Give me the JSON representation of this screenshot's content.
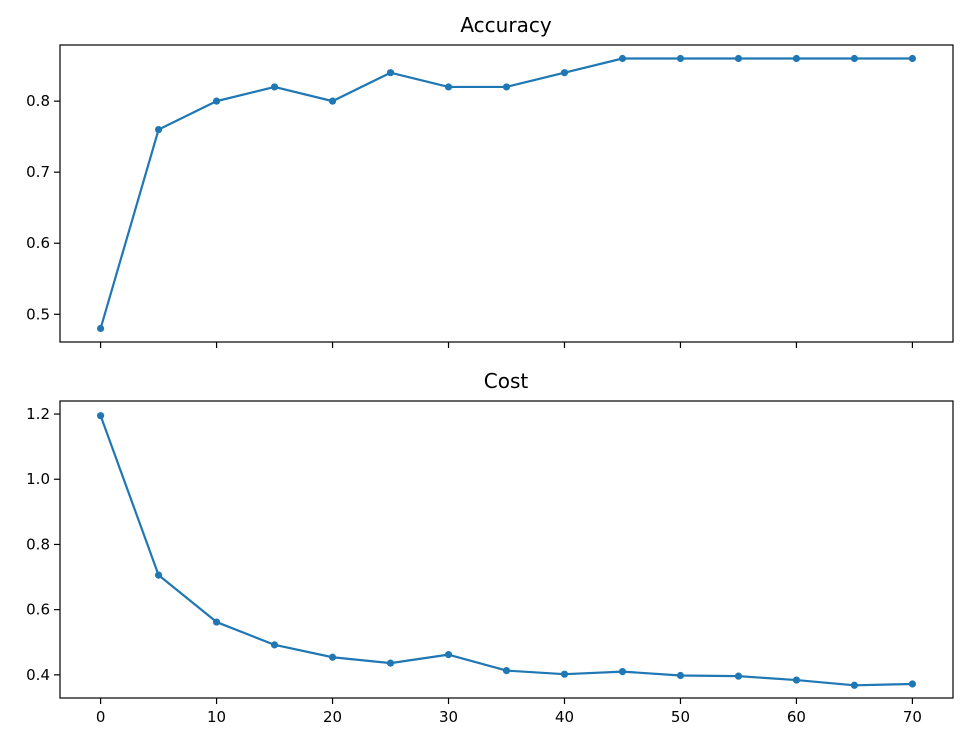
{
  "chart_data": [
    {
      "type": "line",
      "title": "Accuracy",
      "xlabel": "",
      "ylabel": "",
      "x": [
        0,
        5,
        10,
        15,
        20,
        25,
        30,
        35,
        40,
        45,
        50,
        55,
        60,
        65,
        70
      ],
      "series": [
        {
          "values": [
            0.48,
            0.76,
            0.8,
            0.82,
            0.8,
            0.84,
            0.82,
            0.82,
            0.84,
            0.86,
            0.86,
            0.86,
            0.86,
            0.86,
            0.86
          ],
          "color": "#1f77b4",
          "marker": "circle"
        }
      ],
      "xlim": [
        -3.5,
        73.5
      ],
      "ylim": [
        0.461,
        0.879
      ],
      "xticks": [
        0,
        10,
        20,
        30,
        40,
        50,
        60,
        70
      ],
      "xtick_labels_visible": false,
      "yticks": [
        0.5,
        0.6,
        0.7,
        0.8
      ],
      "ytick_labels": [
        "0.5",
        "0.6",
        "0.7",
        "0.8"
      ],
      "grid": false,
      "legend": false
    },
    {
      "type": "line",
      "title": "Cost",
      "xlabel": "",
      "ylabel": "",
      "x": [
        0,
        5,
        10,
        15,
        20,
        25,
        30,
        35,
        40,
        45,
        50,
        55,
        60,
        65,
        70
      ],
      "series": [
        {
          "values": [
            1.195,
            0.706,
            0.562,
            0.492,
            0.454,
            0.436,
            0.462,
            0.413,
            0.402,
            0.41,
            0.398,
            0.396,
            0.384,
            0.368,
            0.372
          ],
          "color": "#1f77b4",
          "marker": "circle"
        }
      ],
      "xlim": [
        -3.5,
        73.5
      ],
      "ylim": [
        0.329,
        1.24
      ],
      "xticks": [
        0,
        10,
        20,
        30,
        40,
        50,
        60,
        70
      ],
      "xtick_labels": [
        "0",
        "10",
        "20",
        "30",
        "40",
        "50",
        "60",
        "70"
      ],
      "xtick_labels_visible": true,
      "yticks": [
        0.4,
        0.6,
        0.8,
        1.0,
        1.2
      ],
      "ytick_labels": [
        "0.4",
        "0.6",
        "0.8",
        "1.0",
        "1.2"
      ],
      "grid": false,
      "legend": false
    }
  ]
}
